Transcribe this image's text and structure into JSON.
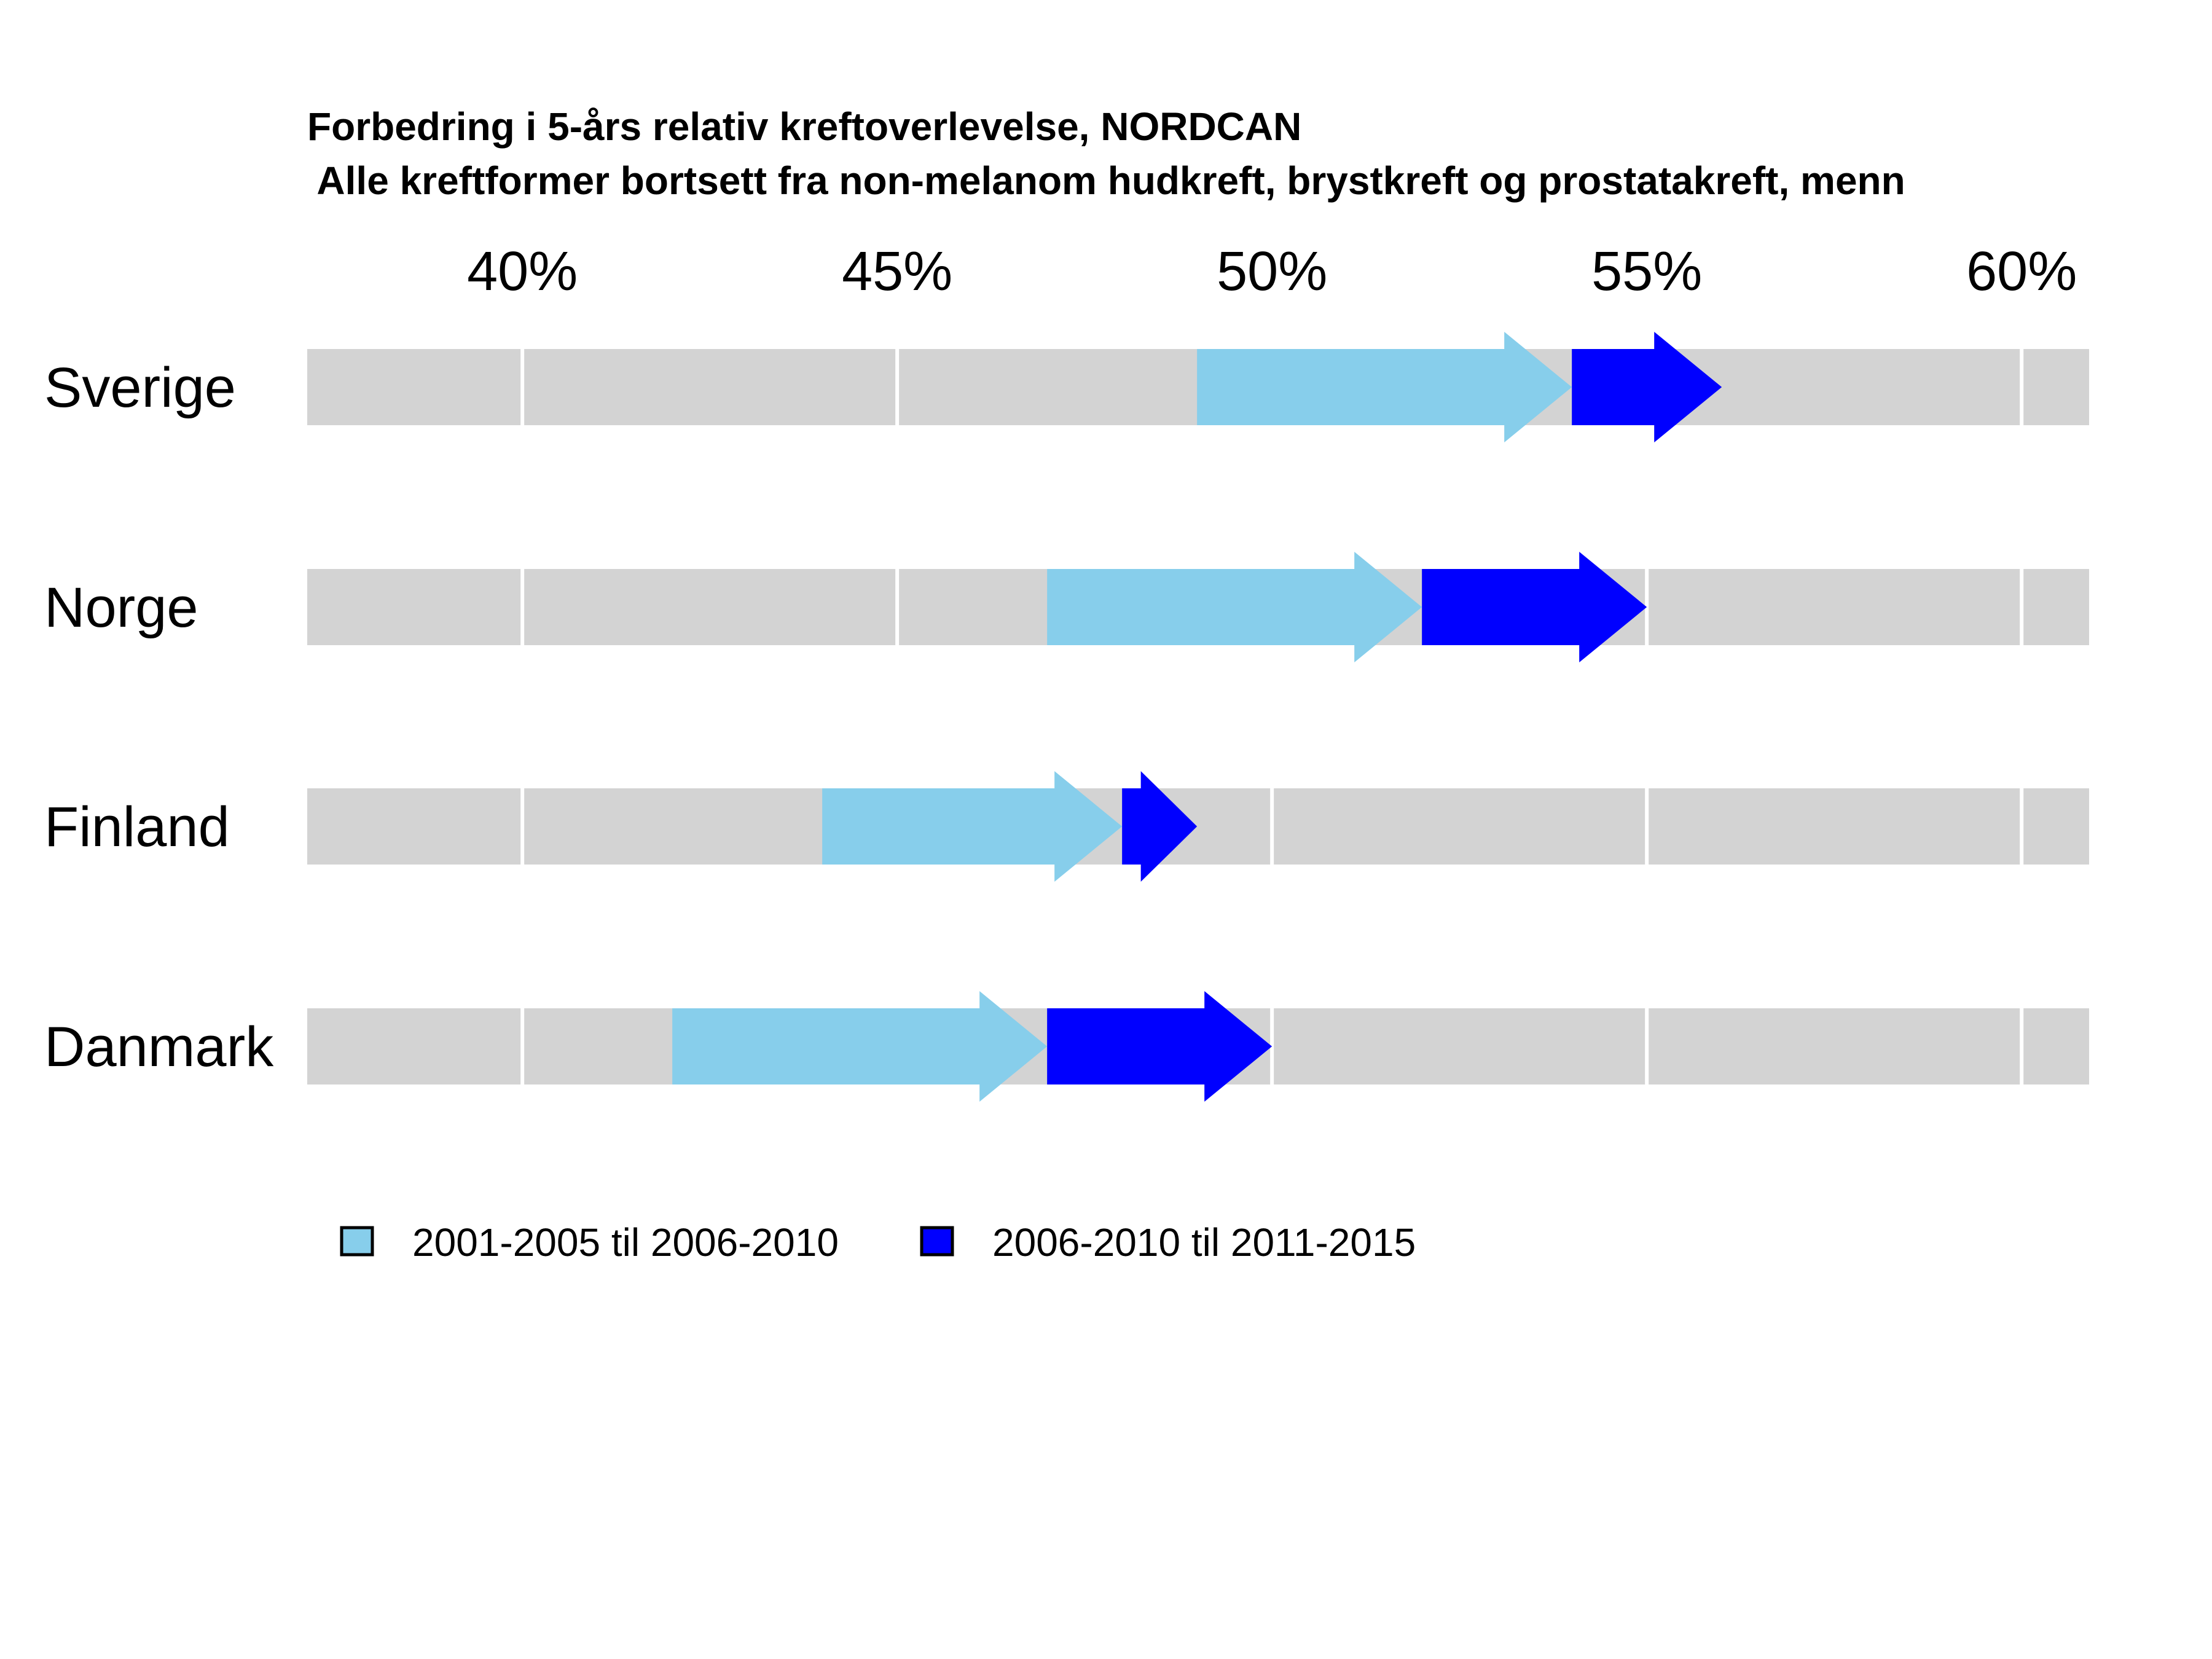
{
  "chart_data": {
    "type": "arrow",
    "title": "Forbedring i 5-års relativ kreftoverlevelse, NORDCAN",
    "subtitle": " Alle kreftformer bortsett fra non-melanom hudkreft, brystkreft og prostatakreft, menn",
    "x_ticks": [
      40,
      45,
      50,
      55,
      60
    ],
    "x_tick_labels": [
      "40%",
      "45%",
      "50%",
      "55%",
      "60%"
    ],
    "xlim": [
      37.13,
      60.9
    ],
    "categories": [
      "Sverige",
      "Norge",
      "Finland",
      "Danmark"
    ],
    "series": [
      {
        "name": "2001-2005 til 2006-2010",
        "color": "#87CEEB",
        "segments": [
          {
            "category": "Sverige",
            "start": 49.0,
            "end": 54.0
          },
          {
            "category": "Norge",
            "start": 47.0,
            "end": 52.0
          },
          {
            "category": "Finland",
            "start": 44.0,
            "end": 48.0
          },
          {
            "category": "Danmark",
            "start": 42.0,
            "end": 47.0
          }
        ]
      },
      {
        "name": "2006-2010 til 2011-2015",
        "color": "#0000FF",
        "segments": [
          {
            "category": "Sverige",
            "start": 54.0,
            "end": 56.0
          },
          {
            "category": "Norge",
            "start": 52.0,
            "end": 55.0
          },
          {
            "category": "Finland",
            "start": 48.0,
            "end": 49.0
          },
          {
            "category": "Danmark",
            "start": 47.0,
            "end": 50.0
          }
        ]
      }
    ],
    "band_color": "#D3D3D3",
    "grid": true,
    "grid_color": "#FFFFFF",
    "legend_position": "bottom-left"
  }
}
